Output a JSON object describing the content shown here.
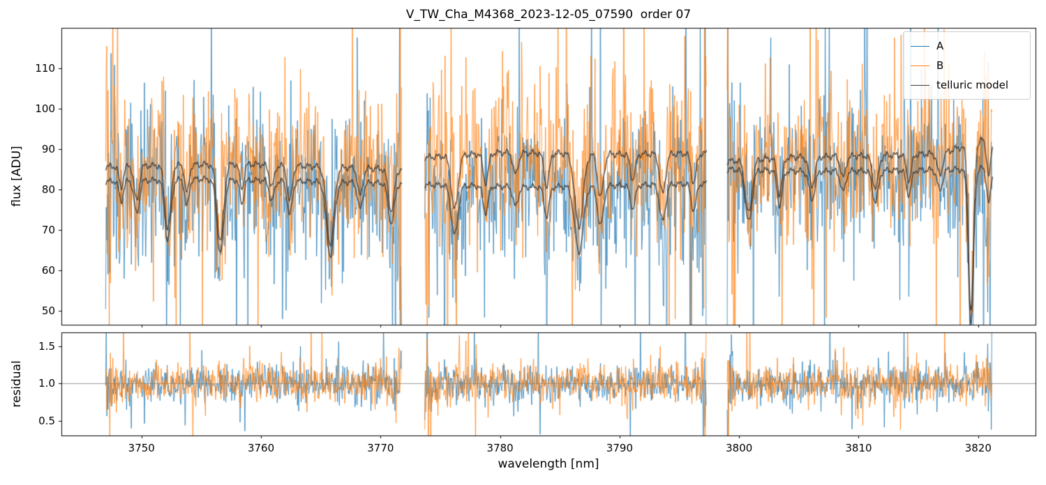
{
  "figure": {
    "background": "#ffffff"
  },
  "chart_data": {
    "type": "line",
    "title": "V_TW_Cha_M4368_2023-12-05_07590  order 07",
    "xlabel": "wavelength [nm]",
    "xlim": [
      3743.3,
      3824.8
    ],
    "xticks": [
      "3750",
      "3760",
      "3770",
      "3780",
      "3790",
      "3800",
      "3810",
      "3820"
    ],
    "segments": [
      [
        3747.0,
        3771.8
      ],
      [
        3773.7,
        3797.3
      ],
      [
        3799.0,
        3821.2
      ]
    ],
    "panels": [
      {
        "name": "flux",
        "ylabel": "flux [ADU]",
        "ylim": [
          46.6,
          119.9
        ],
        "yticks": [
          "50",
          "60",
          "70",
          "80",
          "90",
          "100",
          "110"
        ],
        "grid": false
      },
      {
        "name": "residual",
        "ylabel": "residual",
        "ylim": [
          0.3,
          1.69
        ],
        "yticks": [
          "0.5",
          "1.0",
          "1.5"
        ],
        "axhline": 1.0,
        "axhline_color": "#808080",
        "grid": false
      }
    ],
    "legend": [
      {
        "label": "A",
        "color": "#1f77b4"
      },
      {
        "label": "B",
        "color": "#ff7f0e"
      },
      {
        "label": "telluric model",
        "color": "#3a3a3a"
      }
    ],
    "series_description": {
      "A": "noisy spectrum, mean follows lower telluric-model curve, std ~9 ADU",
      "B": "noisy spectrum, mean follows upper telluric-model curve, std ~9 ADU",
      "residual": "both beams scatter about 1.0 with std ~0.13"
    },
    "noise": {
      "flux_std": 9,
      "residual_std": 0.13,
      "spike_prob": 0.06,
      "spike_scale": 3.5,
      "edge_boost": 3,
      "edge_width_nm": 0.5
    },
    "telluric": {
      "color": "#3a3a3a",
      "continuum_upper": [
        [
          3747,
          86.5
        ],
        [
          3758,
          87.2
        ],
        [
          3771.8,
          85.8
        ],
        [
          3773.7,
          88.8
        ],
        [
          3780,
          90.0
        ],
        [
          3790,
          89.6
        ],
        [
          3797.3,
          89.8
        ],
        [
          3799,
          87.8
        ],
        [
          3804,
          88.8
        ],
        [
          3812,
          89.3
        ],
        [
          3817,
          89.8
        ],
        [
          3821.2,
          94.0
        ]
      ],
      "continuum_lower": [
        [
          3747,
          82.8
        ],
        [
          3755,
          83.4
        ],
        [
          3771.8,
          82.3
        ],
        [
          3773.7,
          82.0
        ],
        [
          3782,
          81.4
        ],
        [
          3790,
          81.8
        ],
        [
          3797.3,
          82.3
        ],
        [
          3799,
          85.8
        ],
        [
          3806,
          85.3
        ],
        [
          3814,
          85.6
        ],
        [
          3819,
          85.8
        ],
        [
          3821.2,
          86.3
        ]
      ],
      "dips": [
        [
          3748.3,
          0.25,
          0.06
        ],
        [
          3749.6,
          0.3,
          0.1
        ],
        [
          3752.2,
          0.35,
          0.18
        ],
        [
          3753.8,
          0.25,
          0.08
        ],
        [
          3756.6,
          0.4,
          0.22
        ],
        [
          3758.4,
          0.25,
          0.07
        ],
        [
          3760.9,
          0.3,
          0.06
        ],
        [
          3762.4,
          0.3,
          0.1
        ],
        [
          3765.8,
          0.45,
          0.22
        ],
        [
          3768.3,
          0.3,
          0.08
        ],
        [
          3770.9,
          0.35,
          0.12
        ],
        [
          3776.2,
          0.4,
          0.15
        ],
        [
          3778.8,
          0.3,
          0.08
        ],
        [
          3781.3,
          0.3,
          0.06
        ],
        [
          3783.9,
          0.3,
          0.09
        ],
        [
          3786.6,
          0.5,
          0.2
        ],
        [
          3788.4,
          0.35,
          0.12
        ],
        [
          3791.1,
          0.3,
          0.07
        ],
        [
          3793.6,
          0.35,
          0.11
        ],
        [
          3796.2,
          0.3,
          0.08
        ],
        [
          3800.8,
          0.4,
          0.15
        ],
        [
          3803.4,
          0.3,
          0.1
        ],
        [
          3806.1,
          0.35,
          0.08
        ],
        [
          3808.7,
          0.3,
          0.06
        ],
        [
          3811.4,
          0.35,
          0.09
        ],
        [
          3814.2,
          0.3,
          0.07
        ],
        [
          3816.8,
          0.3,
          0.06
        ],
        [
          3819.4,
          0.3,
          0.45
        ],
        [
          3820.9,
          0.25,
          0.1
        ]
      ]
    }
  }
}
